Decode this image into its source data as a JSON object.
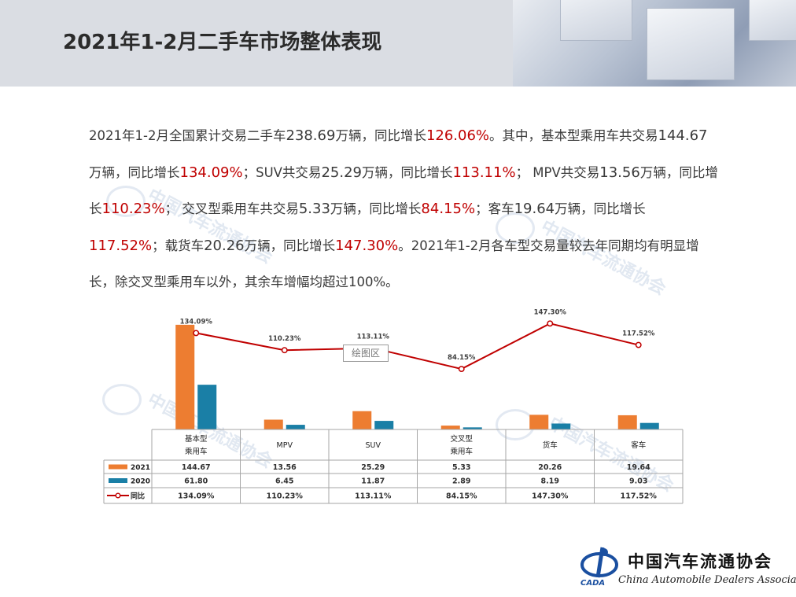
{
  "slide": {
    "title": "2021年1-2月二手车市场整体表现"
  },
  "body_text": [
    {
      "t": "2021年1-2月全国累计交易二手车",
      "s": "n"
    },
    {
      "t": "238.69",
      "s": "b"
    },
    {
      "t": "万辆，同比增长",
      "s": "n"
    },
    {
      "t": "126.06%",
      "s": "h"
    },
    {
      "t": "。其中，基本型乘用车共交易",
      "s": "n"
    },
    {
      "t": "144.67",
      "s": "b"
    },
    {
      "t": "万辆，同比增长",
      "s": "n"
    },
    {
      "t": "134.09%",
      "s": "h"
    },
    {
      "t": "；SUV共交易",
      "s": "n"
    },
    {
      "t": "25.29",
      "s": "b"
    },
    {
      "t": "万辆，同比增长",
      "s": "n"
    },
    {
      "t": "113.11%",
      "s": "h"
    },
    {
      "t": "； MPV共交易",
      "s": "n"
    },
    {
      "t": "13.56",
      "s": "b"
    },
    {
      "t": "万辆，同比增长",
      "s": "n"
    },
    {
      "t": "110.23%",
      "s": "h"
    },
    {
      "t": "； 交叉型乘用车共交易",
      "s": "n"
    },
    {
      "t": "5.33",
      "s": "b"
    },
    {
      "t": "万辆，同比增长",
      "s": "n"
    },
    {
      "t": "84.15%",
      "s": "h"
    },
    {
      "t": "；客车",
      "s": "n"
    },
    {
      "t": "19.64",
      "s": "b"
    },
    {
      "t": "万辆，同比增长",
      "s": "n"
    },
    {
      "t": "117.52%",
      "s": "h"
    },
    {
      "t": "；载货车",
      "s": "n"
    },
    {
      "t": "20.26",
      "s": "b"
    },
    {
      "t": "万辆，同比增长",
      "s": "n"
    },
    {
      "t": "147.30%",
      "s": "h"
    },
    {
      "t": "。2021年1-2月各车型交易量较去年同期均有明显增长，除交叉型乘用车以外，其余车增幅均超过100%。",
      "s": "n"
    }
  ],
  "chart_data": {
    "type": "bar",
    "categories": [
      [
        "基本型",
        "乘用车"
      ],
      [
        "MPV"
      ],
      [
        "SUV"
      ],
      [
        "交叉型",
        "乘用车"
      ],
      [
        "货车"
      ],
      [
        "客车"
      ]
    ],
    "series": [
      {
        "name": "2021",
        "values": [
          144.67,
          13.56,
          25.29,
          5.33,
          20.26,
          19.64
        ],
        "labels": [
          "144.67",
          "13.56",
          "25.29",
          "5.33",
          "20.26",
          "19.64"
        ],
        "color": "#ed7d31"
      },
      {
        "name": "2020",
        "values": [
          61.8,
          6.45,
          11.87,
          2.89,
          8.19,
          9.03
        ],
        "labels": [
          "61.80",
          "6.45",
          "11.87",
          "2.89",
          "8.19",
          "9.03"
        ],
        "color": "#1a7fa6"
      }
    ],
    "line_series": {
      "name": "同比",
      "values": [
        134.09,
        110.23,
        113.11,
        84.15,
        147.3,
        117.52
      ],
      "labels": [
        "134.09%",
        "110.23%",
        "113.11%",
        "84.15%",
        "147.30%",
        "117.52%"
      ],
      "color": "#c00000"
    },
    "bar_ylim": [
      0,
      150
    ],
    "line_ylim": [
      0,
      210
    ],
    "legend": "data-table-left",
    "grid": false
  },
  "tooltip": "绘图区",
  "footer": {
    "org_cn": "中国汽车流通协会",
    "org_en": "China Automobile Dealers Association",
    "org_abbr": "CADA"
  }
}
